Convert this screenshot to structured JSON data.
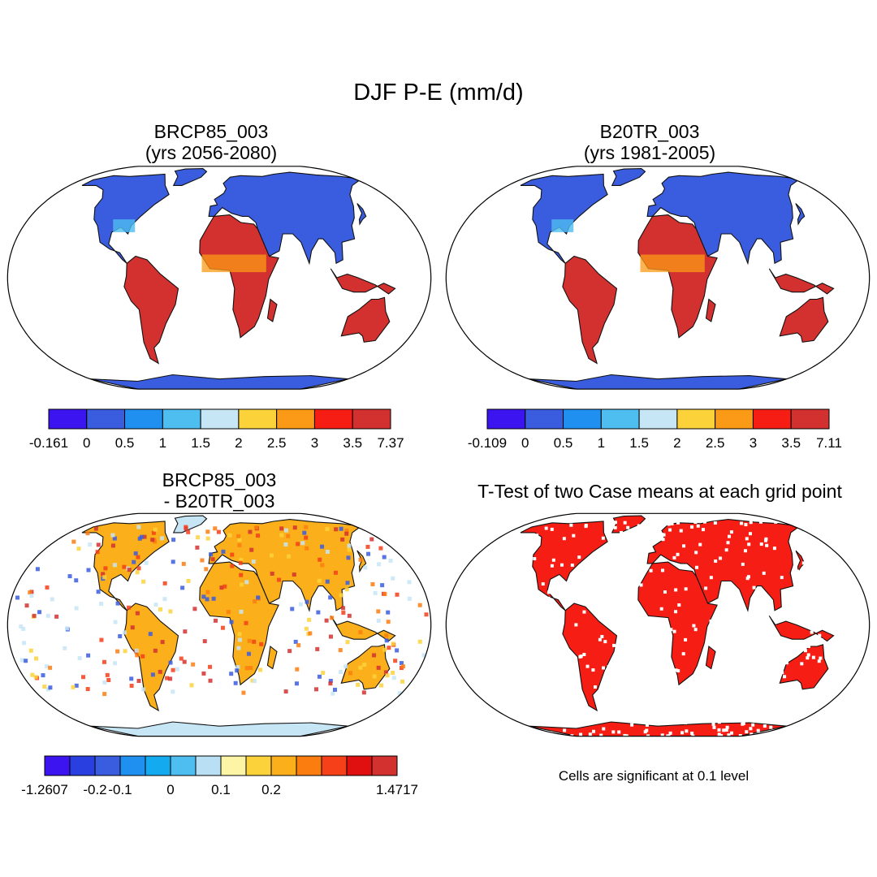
{
  "figure": {
    "title": "DJF P-E (mm/d)"
  },
  "panels": [
    {
      "id": "case1",
      "title_line1": "BRCP85_003",
      "title_line2": "(yrs 2056-2080)",
      "colorbar": {
        "colors": [
          "#3c14f0",
          "#3a5de0",
          "#1f8ff0",
          "#4ebdef",
          "#c7e6f5",
          "#fcd23b",
          "#fb9a16",
          "#f51d14",
          "#d23130"
        ],
        "tick_labels": [
          "-0.161",
          "0",
          "0.5",
          "1",
          "1.5",
          "2",
          "2.5",
          "3",
          "3.5",
          "7.37"
        ]
      }
    },
    {
      "id": "case2",
      "title_line1": "B20TR_003",
      "title_line2": "(yrs 1981-2005)",
      "colorbar": {
        "colors": [
          "#3c14f0",
          "#3a5de0",
          "#1f8ff0",
          "#4ebdef",
          "#c7e6f5",
          "#fcd23b",
          "#fb9a16",
          "#f51d14",
          "#d23130"
        ],
        "tick_labels": [
          "-0.109",
          "0",
          "0.5",
          "1",
          "1.5",
          "2",
          "2.5",
          "3",
          "3.5",
          "7.11"
        ]
      }
    },
    {
      "id": "diff",
      "title_line1": "BRCP85_003",
      "title_line2": "- B20TR_003",
      "colorbar": {
        "colors": [
          "#3c14f0",
          "#2a3fe0",
          "#3a5de0",
          "#1f8ff0",
          "#14aaf0",
          "#4ebdef",
          "#b8dff4",
          "#fdf4a6",
          "#fcd23b",
          "#fbaf1a",
          "#fb7d10",
          "#f5401a",
          "#e01010",
          "#d23130"
        ],
        "tick_labels": [
          "-1.2607",
          "",
          "-0.2",
          "-0.1",
          "",
          "0",
          "",
          "0.1",
          "",
          "0.2",
          "",
          "",
          "",
          "",
          "1.4717"
        ]
      }
    },
    {
      "id": "ttest",
      "title_line1": "T-Test of two Case means at each grid point",
      "note": "Cells are significant at 0.1 level"
    }
  ],
  "map_colors": {
    "case_land": "#d23130",
    "case_high_lat": "#3a5de0",
    "diff_land": "#fbaf1a",
    "diff_high_lat": "#c7e6f5",
    "ttest": "#f51d14"
  }
}
